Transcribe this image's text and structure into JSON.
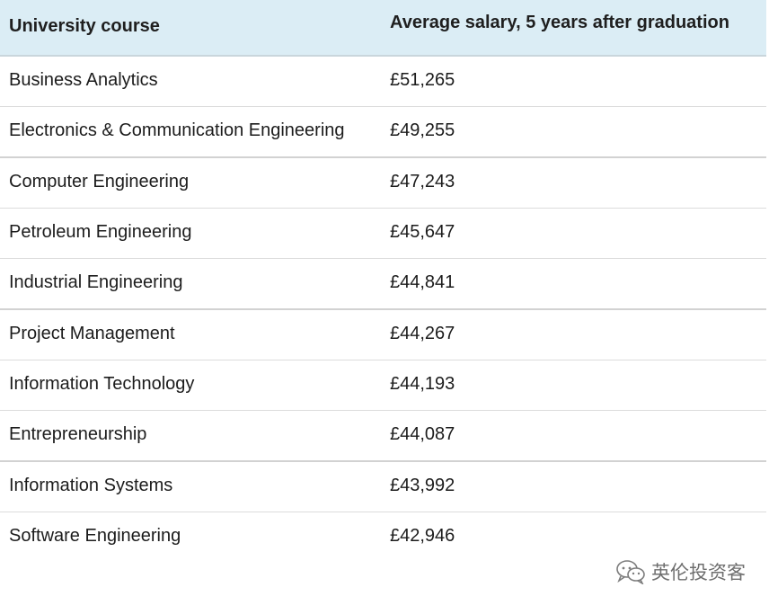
{
  "table": {
    "headers": [
      "University course",
      "Average salary, 5 years after graduation"
    ],
    "rows": [
      {
        "course": "Business Analytics",
        "salary": "£51,265"
      },
      {
        "course": "Electronics & Communication Engineering",
        "salary": "£49,255"
      },
      {
        "course": "Computer Engineering",
        "salary": "£47,243"
      },
      {
        "course": "Petroleum Engineering",
        "salary": "£45,647"
      },
      {
        "course": "Industrial Engineering",
        "salary": "£44,841"
      },
      {
        "course": "Project Management",
        "salary": "£44,267"
      },
      {
        "course": "Information Technology",
        "salary": "£44,193"
      },
      {
        "course": "Entrepreneurship",
        "salary": "£44,087"
      },
      {
        "course": "Information Systems",
        "salary": "£43,992"
      },
      {
        "course": "Software Engineering",
        "salary": "£42,946"
      }
    ]
  },
  "watermark": {
    "text": "英伦投资客",
    "icon": "wechat-icon"
  },
  "colors": {
    "header_bg": "#dbedf5",
    "text": "#1a1a1a"
  }
}
